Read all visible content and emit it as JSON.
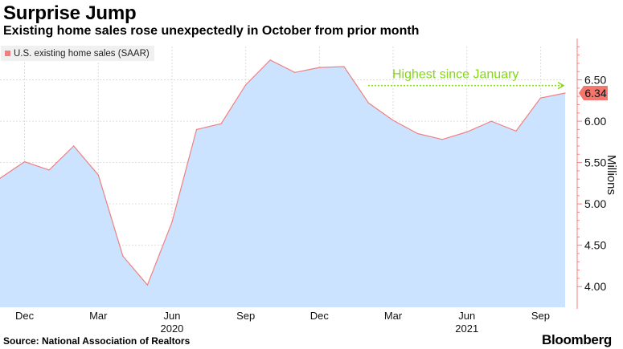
{
  "header": {
    "title": "Surprise Jump",
    "subtitle": "Existing home sales rose unexpectedly in October from prior month"
  },
  "footer": {
    "source": "Source: National Association of Realtors",
    "brand": "Bloomberg"
  },
  "colors": {
    "fill": "#cce3ff",
    "line": "#f08080",
    "grid": "#dddddd",
    "axis": "#f08080",
    "annotation": "#86d618",
    "current_badge": "#f4766d",
    "legend_bg": "#f0f0f0"
  },
  "chart_data": {
    "type": "area",
    "legend": [
      {
        "name": "U.S. existing home sales (SAAR)",
        "color": "#f08080"
      }
    ],
    "legend_placement": "top-left",
    "x": [
      "2019-11",
      "2019-12",
      "2020-01",
      "2020-02",
      "2020-03",
      "2020-04",
      "2020-05",
      "2020-06",
      "2020-07",
      "2020-08",
      "2020-09",
      "2020-10",
      "2020-11",
      "2020-12",
      "2021-01",
      "2021-02",
      "2021-03",
      "2021-04",
      "2021-05",
      "2021-06",
      "2021-07",
      "2021-08",
      "2021-09",
      "2021-10"
    ],
    "series": [
      {
        "name": "U.S. existing home sales (SAAR)",
        "values": [
          5.31,
          5.51,
          5.41,
          5.7,
          5.35,
          4.37,
          4.02,
          4.78,
          5.9,
          5.97,
          6.44,
          6.74,
          6.59,
          6.65,
          6.66,
          6.22,
          6.01,
          5.85,
          5.78,
          5.87,
          6.0,
          5.88,
          6.28,
          6.34
        ]
      }
    ],
    "ylabel": "Millions",
    "ylim": [
      3.75,
      7.0
    ],
    "y_ticks": [
      "4.00",
      "4.50",
      "5.00",
      "5.50",
      "6.00",
      "6.50"
    ],
    "y_tick_values": [
      4.0,
      4.5,
      5.0,
      5.5,
      6.0,
      6.5
    ],
    "y_axis_side": "right",
    "x_ticks": [
      {
        "x": "2019-12",
        "label": "Dec"
      },
      {
        "x": "2020-03",
        "label": "Mar"
      },
      {
        "x": "2020-06",
        "label": "Jun"
      },
      {
        "x": "2020-09",
        "label": "Sep"
      },
      {
        "x": "2020-12",
        "label": "Dec"
      },
      {
        "x": "2021-03",
        "label": "Mar"
      },
      {
        "x": "2021-06",
        "label": "Jun"
      },
      {
        "x": "2021-09",
        "label": "Sep"
      }
    ],
    "x_years": [
      {
        "x": "2020-06",
        "label": "2020"
      },
      {
        "x": "2021-06",
        "label": "2021"
      }
    ],
    "grid": true,
    "current_value_label": "6.34",
    "annotation": {
      "text": "Highest since January",
      "from_x": "2021-01",
      "at_y": 6.47
    }
  }
}
